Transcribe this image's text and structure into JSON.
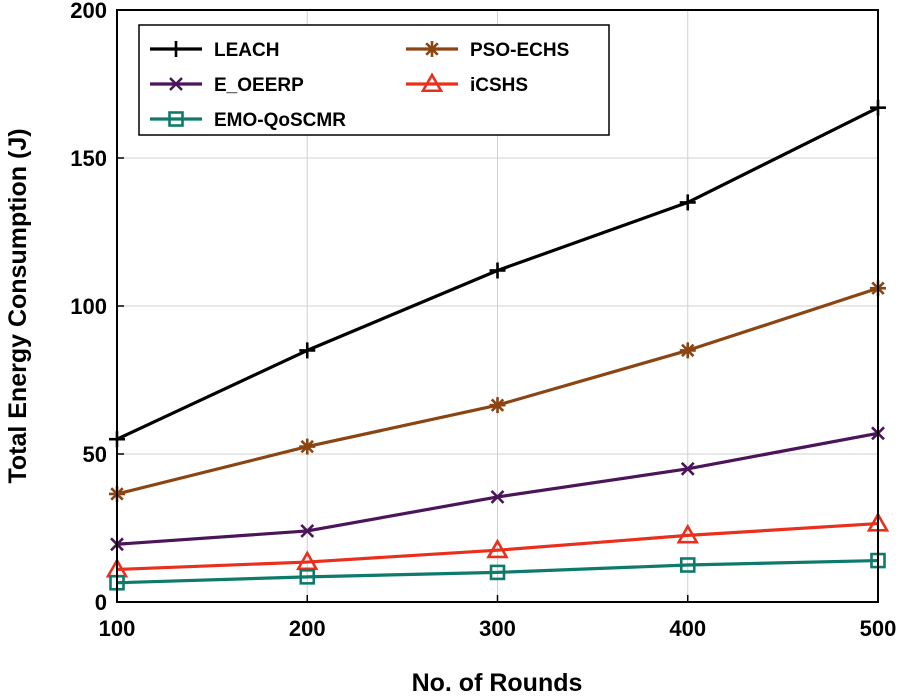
{
  "chart_data": {
    "type": "line",
    "title": "",
    "xlabel": "No. of Rounds",
    "ylabel": "Total Energy Consumption (J)",
    "x": [
      100,
      200,
      300,
      400,
      500
    ],
    "xticks": [
      100,
      200,
      300,
      400,
      500
    ],
    "xtick_labels": [
      "100",
      "200",
      "300",
      "400",
      "500"
    ],
    "yticks": [
      0,
      50,
      100,
      150,
      200
    ],
    "ytick_labels": [
      "0",
      "50",
      "100",
      "150",
      "200"
    ],
    "xlim": [
      100,
      500
    ],
    "ylim": [
      0,
      200
    ],
    "grid": true,
    "legend_position": "top-left",
    "series": [
      {
        "name": "LEACH",
        "color": "#000000",
        "marker": "plus",
        "values": [
          55,
          85,
          112,
          135,
          167
        ]
      },
      {
        "name": "PSO-ECHS",
        "color": "#8B4513",
        "marker": "star",
        "values": [
          36.5,
          52.5,
          66.5,
          85,
          106
        ]
      },
      {
        "name": "E_OEERP",
        "color": "#4B1559",
        "marker": "x",
        "values": [
          19.5,
          24,
          35.5,
          45,
          57
        ]
      },
      {
        "name": "iCSHS",
        "color": "#E8301C",
        "marker": "triangle",
        "values": [
          11,
          13.5,
          17.5,
          22.5,
          26.5
        ]
      },
      {
        "name": "EMO-QoSCMR",
        "color": "#0E7A6B",
        "marker": "square",
        "values": [
          6.5,
          8.5,
          10,
          12.5,
          14
        ]
      }
    ]
  }
}
